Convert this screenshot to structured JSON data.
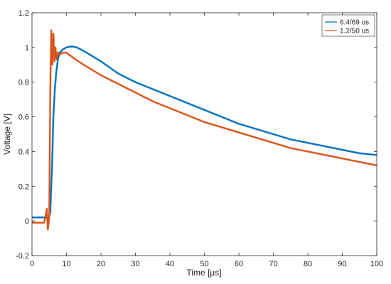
{
  "chart_data": {
    "type": "line",
    "title": "",
    "xlabel": "Time [μs]",
    "ylabel": "Voltage [V]",
    "xlim": [
      0,
      100
    ],
    "ylim": [
      -0.2,
      1.2
    ],
    "x_ticks": [
      0,
      10,
      20,
      30,
      40,
      50,
      60,
      70,
      80,
      90,
      100
    ],
    "y_ticks": [
      -0.2,
      0,
      0.2,
      0.4,
      0.6,
      0.8,
      1,
      1.2
    ],
    "grid": false,
    "legend_position": "top-right",
    "series": [
      {
        "name": "6.4/69 us",
        "color": "#0072BD",
        "x": [
          0,
          4.9,
          5.3,
          5.8,
          6.2,
          6.6,
          7,
          7.5,
          8,
          9,
          10,
          11,
          12,
          13,
          15,
          20,
          25,
          30,
          35,
          40,
          45,
          50,
          55,
          60,
          65,
          70,
          75,
          80,
          85,
          90,
          95,
          100
        ],
        "y": [
          0.02,
          0.02,
          0.05,
          0.3,
          0.6,
          0.75,
          0.85,
          0.93,
          0.97,
          0.99,
          1.0,
          1.005,
          1.005,
          1.0,
          0.98,
          0.92,
          0.85,
          0.8,
          0.76,
          0.72,
          0.68,
          0.64,
          0.6,
          0.56,
          0.53,
          0.5,
          0.47,
          0.45,
          0.43,
          0.41,
          0.39,
          0.38
        ]
      },
      {
        "name": "1.2/50 us",
        "color": "#D95319",
        "x": [
          0,
          3.5,
          4.0,
          4.3,
          4.6,
          5.0,
          5.3,
          5.6,
          5.9,
          6.2,
          6.5,
          6.8,
          7.1,
          7.5,
          8,
          9,
          10,
          12,
          15,
          20,
          25,
          30,
          35,
          40,
          45,
          50,
          55,
          60,
          65,
          70,
          75,
          80,
          85,
          90,
          95,
          100
        ],
        "y": [
          -0.01,
          -0.01,
          0.03,
          0.07,
          -0.05,
          0.02,
          0.75,
          1.1,
          0.9,
          1.08,
          0.92,
          1.0,
          0.93,
          0.97,
          0.96,
          0.97,
          0.97,
          0.94,
          0.9,
          0.84,
          0.79,
          0.74,
          0.69,
          0.65,
          0.61,
          0.57,
          0.54,
          0.51,
          0.48,
          0.45,
          0.42,
          0.4,
          0.38,
          0.36,
          0.34,
          0.32
        ]
      }
    ]
  }
}
